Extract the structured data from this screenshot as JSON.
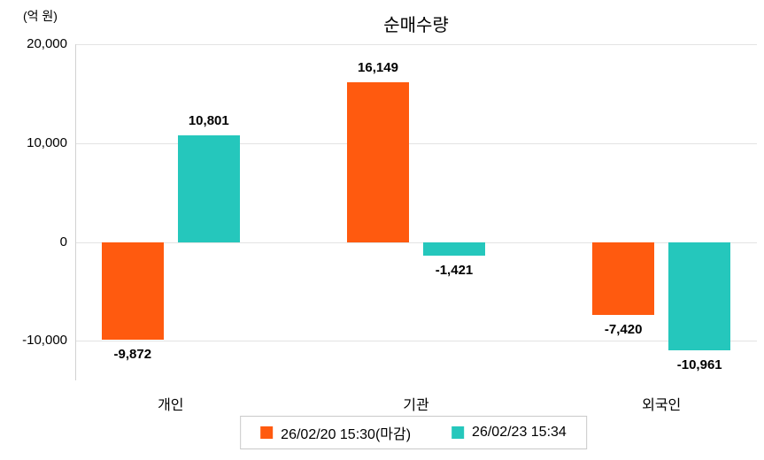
{
  "chart_data": {
    "type": "bar",
    "title": "순매수량",
    "unit_label": "(억 원)",
    "categories": [
      "개인",
      "기관",
      "외국인"
    ],
    "series": [
      {
        "name": "26/02/20 15:30(마감)",
        "color": "#ff5a0f",
        "values": [
          -9872,
          16149,
          -7420
        ]
      },
      {
        "name": "26/02/23 15:34",
        "color": "#25c7bc",
        "values": [
          10801,
          -1421,
          -10961
        ]
      }
    ],
    "yticks": [
      20000,
      10000,
      0,
      -10000
    ],
    "ylim": [
      -14000,
      20000
    ],
    "grid": "horizontal",
    "legend_position": "bottom"
  }
}
